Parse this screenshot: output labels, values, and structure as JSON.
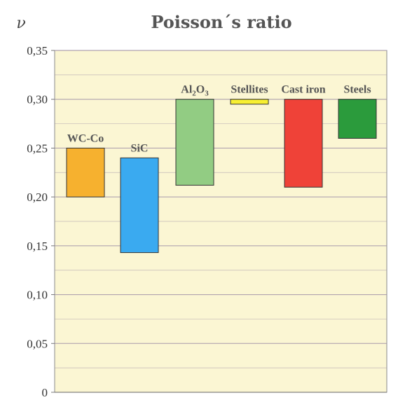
{
  "chart_data": {
    "type": "bar",
    "title": "Poisson´s ratio",
    "ylabel": "ν",
    "xlabel": "",
    "ylim": [
      0,
      0.35
    ],
    "y_ticks": [
      "0",
      "0,05",
      "0,10",
      "0,15",
      "0,20",
      "0,25",
      "0,30",
      "0,35"
    ],
    "grid": true,
    "categories": [
      "WC-Co",
      "SiC",
      "Al2O3",
      "Stellites",
      "Cast iron",
      "Steels"
    ],
    "ranges": [
      {
        "name": "WC-Co",
        "low": 0.2,
        "high": 0.25,
        "color": "#f6b12f"
      },
      {
        "name": "SiC",
        "low": 0.143,
        "high": 0.24,
        "color": "#3aaaf0"
      },
      {
        "name": "Al2O3",
        "low": 0.212,
        "high": 0.3,
        "color": "#92cc83"
      },
      {
        "name": "Stellites",
        "low": 0.295,
        "high": 0.3,
        "color": "#f7ef32"
      },
      {
        "name": "Cast iron",
        "low": 0.21,
        "high": 0.3,
        "color": "#ef4238"
      },
      {
        "name": "Steels",
        "low": 0.26,
        "high": 0.3,
        "color": "#2b9b3c"
      }
    ],
    "label_parts": [
      [
        {
          "text": "WC-Co"
        }
      ],
      [
        {
          "text": "SiC"
        }
      ],
      [
        {
          "text": "Al"
        },
        {
          "text": "2",
          "sub": true
        },
        {
          "text": "O"
        },
        {
          "text": "3",
          "sub": true
        }
      ],
      [
        {
          "text": "Stellites"
        }
      ],
      [
        {
          "text": "Cast iron"
        }
      ],
      [
        {
          "text": "Steels"
        }
      ]
    ],
    "plot_background": "#fbf6d3",
    "grid_color": "#9e8fa6"
  }
}
